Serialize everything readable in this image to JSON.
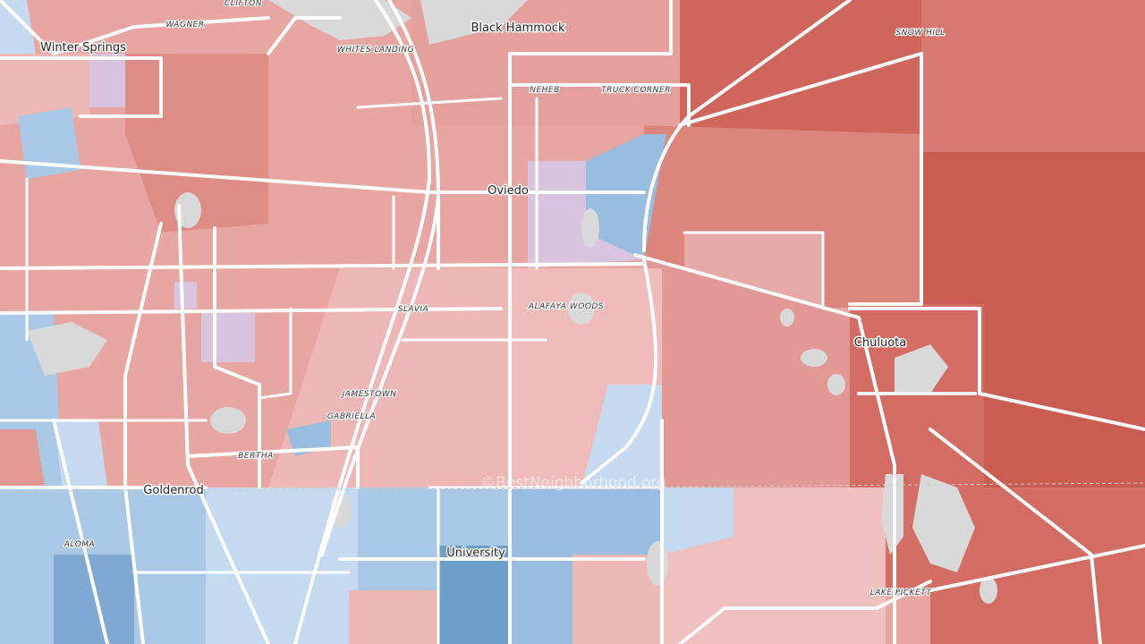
{
  "places": [
    {
      "label": "Winter Springs",
      "kind": "town"
    },
    {
      "label": "Black Hammock",
      "kind": "town"
    },
    {
      "label": "Oviedo",
      "kind": "town"
    },
    {
      "label": "Chuluota",
      "kind": "town"
    },
    {
      "label": "Goldenrod",
      "kind": "town"
    },
    {
      "label": "University",
      "kind": "town"
    },
    {
      "label": "CLIFTON",
      "kind": "area"
    },
    {
      "label": "WAGNER",
      "kind": "area"
    },
    {
      "label": "WHITES LANDING",
      "kind": "area"
    },
    {
      "label": "NEHEB",
      "kind": "area"
    },
    {
      "label": "TRUCK CORNER",
      "kind": "area"
    },
    {
      "label": "SNOW HILL",
      "kind": "area"
    },
    {
      "label": "SLAVIA",
      "kind": "area"
    },
    {
      "label": "ALAFAYA WOODS",
      "kind": "area"
    },
    {
      "label": "JAMESTOWN",
      "kind": "area"
    },
    {
      "label": "GABRIELLA",
      "kind": "area"
    },
    {
      "label": "BERTHA",
      "kind": "area"
    },
    {
      "label": "ALOMA",
      "kind": "area"
    },
    {
      "label": "LAKE PICKETT",
      "kind": "area"
    }
  ],
  "watermark": "©BestNeighborhood.org"
}
